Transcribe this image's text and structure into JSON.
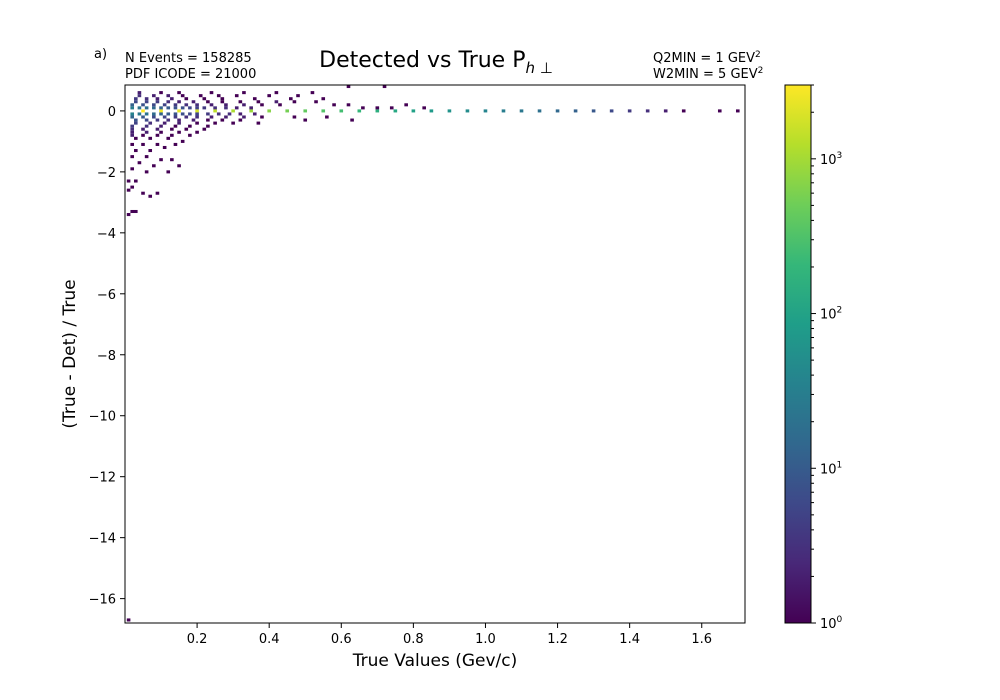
{
  "panel_label": "a)",
  "info_left": [
    "N Events =  158285",
    "PDF ICODE = 21000"
  ],
  "info_right": [
    {
      "text": "Q2MIN = 1 GEV",
      "sup": "2"
    },
    {
      "text": "W2MIN = 5 GEV",
      "sup": "2"
    }
  ],
  "colorbar": {
    "scale": "log",
    "range": [
      1,
      3000
    ],
    "colormap": "viridis",
    "colors": [
      "#440154",
      "#482878",
      "#3e4989",
      "#31688e",
      "#26828e",
      "#1f9e89",
      "#35b779",
      "#6ece58",
      "#b5de2b",
      "#fde725"
    ],
    "ticks": [
      {
        "base": "10",
        "exp": "0",
        "value": 1
      },
      {
        "base": "10",
        "exp": "1",
        "value": 10
      },
      {
        "base": "10",
        "exp": "2",
        "value": 100
      },
      {
        "base": "10",
        "exp": "3",
        "value": 1000
      }
    ]
  },
  "chart_data": {
    "type": "heatmap",
    "title": "Detected vs True P",
    "title_subscript": "h ⊥",
    "xlabel": "True Values (Gev/c)",
    "ylabel": "(True - Det) / True",
    "xlim": [
      0.0,
      1.72
    ],
    "ylim": [
      -16.8,
      0.85
    ],
    "xticks": [
      {
        "value": 0.2,
        "label": "0.2"
      },
      {
        "value": 0.4,
        "label": "0.4"
      },
      {
        "value": 0.6,
        "label": "0.6"
      },
      {
        "value": 0.8,
        "label": "0.8"
      },
      {
        "value": 1.0,
        "label": "1.0"
      },
      {
        "value": 1.2,
        "label": "1.2"
      },
      {
        "value": 1.4,
        "label": "1.4"
      },
      {
        "value": 1.6,
        "label": "1.6"
      }
    ],
    "yticks": [
      {
        "value": 0,
        "label": "0"
      },
      {
        "value": -2,
        "label": "−2"
      },
      {
        "value": -4,
        "label": "−4"
      },
      {
        "value": -6,
        "label": "−6"
      },
      {
        "value": -8,
        "label": "−8"
      },
      {
        "value": -10,
        "label": "−10"
      },
      {
        "value": -12,
        "label": "−12"
      },
      {
        "value": -14,
        "label": "−14"
      },
      {
        "value": -16,
        "label": "−16"
      }
    ],
    "grid": false,
    "bin_size": [
      0.01,
      0.1
    ],
    "cells": [
      [
        0.05,
        0.0,
        3000
      ],
      [
        0.1,
        0.0,
        2500
      ],
      [
        0.15,
        0.0,
        2200
      ],
      [
        0.2,
        0.0,
        1800
      ],
      [
        0.25,
        0.0,
        1400
      ],
      [
        0.3,
        0.0,
        1100
      ],
      [
        0.35,
        0.0,
        900
      ],
      [
        0.4,
        0.0,
        700
      ],
      [
        0.45,
        0.0,
        550
      ],
      [
        0.5,
        0.0,
        420
      ],
      [
        0.55,
        0.0,
        330
      ],
      [
        0.6,
        0.0,
        260
      ],
      [
        0.65,
        0.0,
        200
      ],
      [
        0.7,
        0.0,
        150
      ],
      [
        0.75,
        0.0,
        120
      ],
      [
        0.8,
        0.0,
        95
      ],
      [
        0.85,
        0.0,
        75
      ],
      [
        0.9,
        0.0,
        60
      ],
      [
        0.95,
        0.0,
        48
      ],
      [
        1.0,
        0.0,
        38
      ],
      [
        1.05,
        0.0,
        30
      ],
      [
        1.1,
        0.0,
        24
      ],
      [
        1.15,
        0.0,
        19
      ],
      [
        1.2,
        0.0,
        15
      ],
      [
        1.25,
        0.0,
        12
      ],
      [
        1.3,
        0.0,
        9
      ],
      [
        1.35,
        0.0,
        6
      ],
      [
        1.4,
        0.0,
        4
      ],
      [
        1.45,
        0.0,
        3
      ],
      [
        1.5,
        0.0,
        2
      ],
      [
        1.55,
        0.0,
        1
      ],
      [
        1.65,
        0.0,
        1
      ],
      [
        1.7,
        0.0,
        1
      ],
      [
        0.02,
        0.1,
        30
      ],
      [
        0.04,
        0.1,
        22
      ],
      [
        0.06,
        0.1,
        18
      ],
      [
        0.08,
        0.1,
        15
      ],
      [
        0.1,
        0.1,
        12
      ],
      [
        0.12,
        0.1,
        10
      ],
      [
        0.14,
        0.1,
        8
      ],
      [
        0.16,
        0.1,
        7
      ],
      [
        0.18,
        0.1,
        6
      ],
      [
        0.2,
        0.1,
        5
      ],
      [
        0.22,
        0.1,
        4
      ],
      [
        0.25,
        0.1,
        3
      ],
      [
        0.28,
        0.1,
        3
      ],
      [
        0.31,
        0.1,
        2
      ],
      [
        0.35,
        0.1,
        2
      ],
      [
        0.02,
        -0.1,
        35
      ],
      [
        0.04,
        -0.1,
        25
      ],
      [
        0.06,
        -0.1,
        20
      ],
      [
        0.08,
        -0.1,
        16
      ],
      [
        0.1,
        -0.1,
        13
      ],
      [
        0.12,
        -0.1,
        10
      ],
      [
        0.14,
        -0.1,
        8
      ],
      [
        0.16,
        -0.1,
        7
      ],
      [
        0.18,
        -0.1,
        6
      ],
      [
        0.2,
        -0.1,
        5
      ],
      [
        0.23,
        -0.1,
        4
      ],
      [
        0.26,
        -0.1,
        3
      ],
      [
        0.29,
        -0.1,
        3
      ],
      [
        0.32,
        -0.1,
        2
      ],
      [
        0.36,
        -0.1,
        2
      ],
      [
        0.02,
        0.2,
        12
      ],
      [
        0.05,
        0.2,
        8
      ],
      [
        0.08,
        0.2,
        6
      ],
      [
        0.11,
        0.2,
        5
      ],
      [
        0.14,
        0.2,
        4
      ],
      [
        0.17,
        0.2,
        3
      ],
      [
        0.2,
        0.2,
        3
      ],
      [
        0.24,
        0.2,
        2
      ],
      [
        0.28,
        0.2,
        2
      ],
      [
        0.33,
        0.2,
        2
      ],
      [
        0.38,
        0.2,
        1
      ],
      [
        0.43,
        0.2,
        1
      ],
      [
        0.02,
        -0.2,
        14
      ],
      [
        0.05,
        -0.2,
        9
      ],
      [
        0.08,
        -0.2,
        6
      ],
      [
        0.11,
        -0.2,
        5
      ],
      [
        0.14,
        -0.2,
        4
      ],
      [
        0.17,
        -0.2,
        3
      ],
      [
        0.2,
        -0.2,
        3
      ],
      [
        0.24,
        -0.2,
        2
      ],
      [
        0.28,
        -0.2,
        2
      ],
      [
        0.33,
        -0.2,
        2
      ],
      [
        0.38,
        -0.2,
        1
      ],
      [
        0.03,
        0.3,
        6
      ],
      [
        0.06,
        0.3,
        5
      ],
      [
        0.09,
        0.3,
        4
      ],
      [
        0.12,
        0.3,
        3
      ],
      [
        0.15,
        0.3,
        2
      ],
      [
        0.19,
        0.3,
        2
      ],
      [
        0.23,
        0.3,
        1
      ],
      [
        0.27,
        0.3,
        1
      ],
      [
        0.32,
        0.3,
        1
      ],
      [
        0.37,
        0.3,
        1
      ],
      [
        0.42,
        0.3,
        2
      ],
      [
        0.47,
        0.3,
        1
      ],
      [
        0.53,
        0.3,
        1
      ],
      [
        0.58,
        0.2,
        1
      ],
      [
        0.62,
        0.2,
        1
      ],
      [
        0.66,
        0.1,
        1
      ],
      [
        0.7,
        0.1,
        1
      ],
      [
        0.74,
        0.1,
        1
      ],
      [
        0.78,
        0.2,
        1
      ],
      [
        0.83,
        0.1,
        1
      ],
      [
        0.03,
        -0.3,
        8
      ],
      [
        0.06,
        -0.3,
        6
      ],
      [
        0.09,
        -0.3,
        4
      ],
      [
        0.12,
        -0.3,
        3
      ],
      [
        0.15,
        -0.3,
        2
      ],
      [
        0.19,
        -0.3,
        2
      ],
      [
        0.23,
        -0.3,
        1
      ],
      [
        0.27,
        -0.3,
        1
      ],
      [
        0.32,
        -0.3,
        1
      ],
      [
        0.03,
        0.4,
        4
      ],
      [
        0.06,
        0.4,
        3
      ],
      [
        0.09,
        0.4,
        2
      ],
      [
        0.13,
        0.4,
        2
      ],
      [
        0.17,
        0.4,
        1
      ],
      [
        0.22,
        0.4,
        1
      ],
      [
        0.27,
        0.4,
        1
      ],
      [
        0.36,
        0.4,
        1
      ],
      [
        0.46,
        0.4,
        1
      ],
      [
        0.55,
        0.4,
        1
      ],
      [
        0.04,
        0.5,
        3
      ],
      [
        0.08,
        0.5,
        2
      ],
      [
        0.12,
        0.5,
        2
      ],
      [
        0.16,
        0.5,
        1
      ],
      [
        0.21,
        0.5,
        1
      ],
      [
        0.26,
        0.5,
        1
      ],
      [
        0.31,
        0.5,
        1
      ],
      [
        0.4,
        0.5,
        1
      ],
      [
        0.48,
        0.5,
        1
      ],
      [
        0.04,
        0.6,
        2
      ],
      [
        0.1,
        0.6,
        1
      ],
      [
        0.15,
        0.6,
        1
      ],
      [
        0.24,
        0.6,
        1
      ],
      [
        0.33,
        0.6,
        1
      ],
      [
        0.42,
        0.6,
        1
      ],
      [
        0.52,
        0.6,
        1
      ],
      [
        0.62,
        0.8,
        1
      ],
      [
        0.72,
        0.8,
        1
      ],
      [
        0.03,
        -0.4,
        5
      ],
      [
        0.07,
        -0.4,
        3
      ],
      [
        0.11,
        -0.4,
        2
      ],
      [
        0.15,
        -0.4,
        2
      ],
      [
        0.2,
        -0.4,
        1
      ],
      [
        0.25,
        -0.4,
        1
      ],
      [
        0.3,
        -0.4,
        1
      ],
      [
        0.37,
        -0.4,
        1
      ],
      [
        0.47,
        -0.2,
        1
      ],
      [
        0.5,
        -0.3,
        1
      ],
      [
        0.56,
        -0.2,
        1
      ],
      [
        0.63,
        -0.3,
        1
      ],
      [
        0.02,
        -0.5,
        4
      ],
      [
        0.06,
        -0.5,
        3
      ],
      [
        0.1,
        -0.5,
        2
      ],
      [
        0.14,
        -0.5,
        1
      ],
      [
        0.18,
        -0.5,
        1
      ],
      [
        0.23,
        -0.5,
        1
      ],
      [
        0.02,
        -0.6,
        3
      ],
      [
        0.05,
        -0.6,
        2
      ],
      [
        0.09,
        -0.6,
        2
      ],
      [
        0.13,
        -0.6,
        1
      ],
      [
        0.17,
        -0.6,
        1
      ],
      [
        0.22,
        -0.6,
        1
      ],
      [
        0.02,
        -0.7,
        2
      ],
      [
        0.06,
        -0.7,
        2
      ],
      [
        0.1,
        -0.7,
        1
      ],
      [
        0.15,
        -0.7,
        1
      ],
      [
        0.2,
        -0.7,
        1
      ],
      [
        0.02,
        -0.8,
        2
      ],
      [
        0.05,
        -0.8,
        1
      ],
      [
        0.09,
        -0.8,
        1
      ],
      [
        0.13,
        -0.8,
        1
      ],
      [
        0.18,
        -0.8,
        1
      ],
      [
        0.03,
        -0.9,
        1
      ],
      [
        0.07,
        -0.9,
        1
      ],
      [
        0.12,
        -0.9,
        1
      ],
      [
        0.16,
        -1.0,
        1
      ],
      [
        0.02,
        -1.1,
        1
      ],
      [
        0.05,
        -1.1,
        1
      ],
      [
        0.09,
        -1.1,
        1
      ],
      [
        0.14,
        -1.1,
        1
      ],
      [
        0.03,
        -1.3,
        1
      ],
      [
        0.07,
        -1.3,
        1
      ],
      [
        0.11,
        -1.2,
        1
      ],
      [
        0.02,
        -1.5,
        1
      ],
      [
        0.06,
        -1.5,
        1
      ],
      [
        0.1,
        -1.6,
        1
      ],
      [
        0.04,
        -1.7,
        1
      ],
      [
        0.08,
        -1.8,
        1
      ],
      [
        0.13,
        -1.6,
        1
      ],
      [
        0.15,
        -1.8,
        1
      ],
      [
        0.02,
        -1.9,
        1
      ],
      [
        0.06,
        -2.0,
        1
      ],
      [
        0.12,
        -2.0,
        1
      ],
      [
        0.01,
        -2.3,
        1
      ],
      [
        0.03,
        -2.3,
        1
      ],
      [
        0.01,
        -2.6,
        1
      ],
      [
        0.02,
        -2.5,
        1
      ],
      [
        0.05,
        -2.7,
        1
      ],
      [
        0.07,
        -2.8,
        1
      ],
      [
        0.09,
        -2.7,
        1
      ],
      [
        0.01,
        -3.4,
        1
      ],
      [
        0.03,
        -3.3,
        1
      ],
      [
        0.02,
        -3.3,
        1
      ],
      [
        0.01,
        -16.7,
        1
      ]
    ]
  }
}
